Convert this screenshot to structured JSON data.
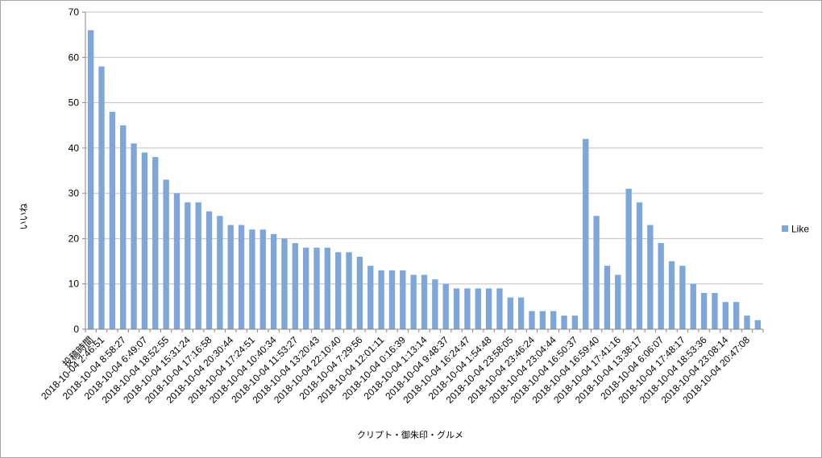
{
  "chart_data": {
    "type": "bar",
    "title": "",
    "xlabel": "クリプト・御朱印・グルメ",
    "ylabel": "いいね",
    "ylim": [
      0,
      70
    ],
    "yticks": [
      0,
      10,
      20,
      30,
      40,
      50,
      60,
      70
    ],
    "grid": true,
    "legend_position": "right",
    "series": [
      {
        "name": "Like",
        "color": "#7ea6d9",
        "values": [
          66,
          58,
          48,
          45,
          41,
          39,
          38,
          33,
          30,
          28,
          28,
          26,
          25,
          23,
          23,
          22,
          22,
          21,
          20,
          19,
          18,
          18,
          18,
          17,
          17,
          16,
          14,
          13,
          13,
          13,
          12,
          12,
          11,
          10,
          9,
          9,
          9,
          9,
          9,
          7,
          7,
          4,
          4,
          4,
          3,
          3,
          42,
          25,
          14,
          12,
          31,
          28,
          23,
          19,
          15,
          14,
          10,
          8,
          8,
          6,
          6,
          3,
          2
        ]
      }
    ],
    "category_labels": [
      {
        "index": 0,
        "text": "投稿時間"
      },
      {
        "index": 1,
        "text": "2018-10-04 2:46:51"
      },
      {
        "index": 3,
        "text": "2018-10-04 8:58:27"
      },
      {
        "index": 5,
        "text": "2018-10-04 6:49:07"
      },
      {
        "index": 7,
        "text": "2018-10-04 18:52:55"
      },
      {
        "index": 9,
        "text": "2018-10-04 15:31:24"
      },
      {
        "index": 11,
        "text": "2018-10-04 17:16:58"
      },
      {
        "index": 13,
        "text": "2018-10-04 20:30:44"
      },
      {
        "index": 15,
        "text": "2018-10-04 17:24:51"
      },
      {
        "index": 17,
        "text": "2018-10-04 10:40:34"
      },
      {
        "index": 19,
        "text": "2018-10-04 11:53:27"
      },
      {
        "index": 21,
        "text": "2018-10-04 13:20:43"
      },
      {
        "index": 23,
        "text": "2018-10-04 22:10:40"
      },
      {
        "index": 25,
        "text": "2018-10-04 7:29:56"
      },
      {
        "index": 27,
        "text": "2018-10-04 12:01:11"
      },
      {
        "index": 29,
        "text": "2018-10-04 0:16:39"
      },
      {
        "index": 31,
        "text": "2018-10-04 1:13:14"
      },
      {
        "index": 33,
        "text": "2018-10-04 9:48:37"
      },
      {
        "index": 35,
        "text": "2018-10-04 16:24:47"
      },
      {
        "index": 37,
        "text": "2018-10-04 1:54:48"
      },
      {
        "index": 39,
        "text": "2018-10-04 23:58:05"
      },
      {
        "index": 41,
        "text": "2018-10-04 23:46:24"
      },
      {
        "index": 43,
        "text": "2018-10-04 23:04:44"
      },
      {
        "index": 45,
        "text": "2018-10-04 16:50:37"
      },
      {
        "index": 47,
        "text": "2018-10-04 16:59:40"
      },
      {
        "index": 49,
        "text": "2018-10-04 17:41:16"
      },
      {
        "index": 51,
        "text": "2018-10-04 13:38:17"
      },
      {
        "index": 53,
        "text": "2018-10-04 6:06:07"
      },
      {
        "index": 55,
        "text": "2018-10-04 17:48:17"
      },
      {
        "index": 57,
        "text": "2018-10-04 18:53:36"
      },
      {
        "index": 59,
        "text": "2018-10-04 23:08:14"
      },
      {
        "index": 61,
        "text": "2018-10-04 20:47:08"
      }
    ]
  }
}
